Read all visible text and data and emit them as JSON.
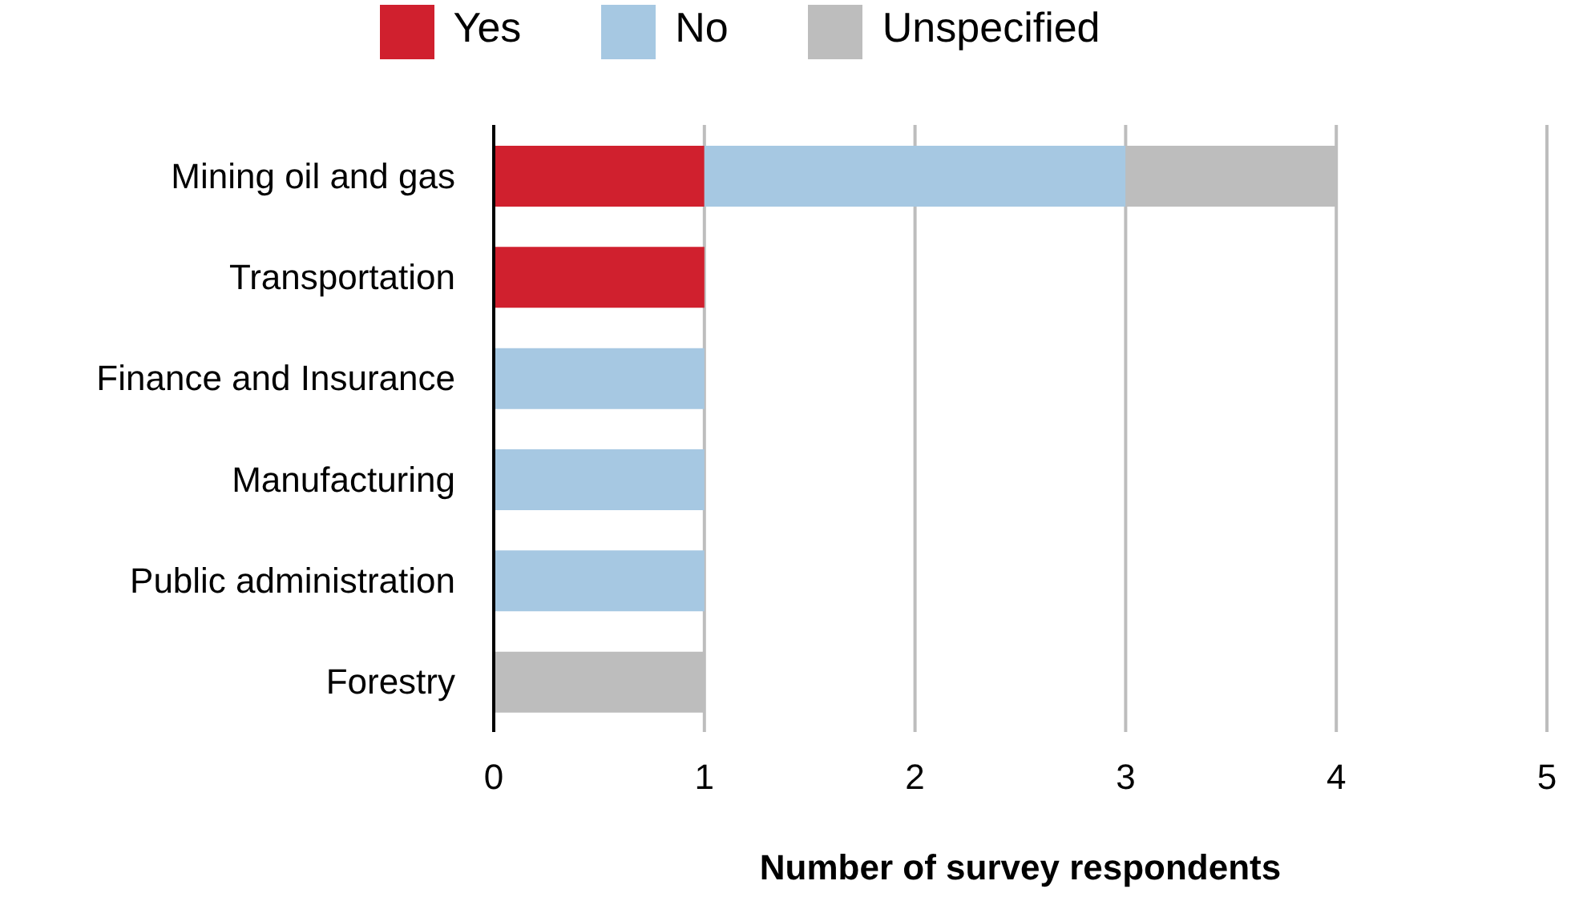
{
  "chart_data": {
    "type": "bar",
    "orientation": "horizontal",
    "stacked": true,
    "categories": [
      "Mining oil and gas",
      "Transportation",
      "Finance and Insurance",
      "Manufacturing",
      "Public administration",
      "Forestry"
    ],
    "series": [
      {
        "name": "Yes",
        "color": "#d0202e",
        "values": [
          1,
          1,
          null,
          null,
          null,
          null
        ]
      },
      {
        "name": "No",
        "color": "#a6c8e2",
        "values": [
          2,
          null,
          1,
          1,
          1,
          null
        ]
      },
      {
        "name": "Unspecified",
        "color": "#bdbdbd",
        "values": [
          1,
          null,
          null,
          null,
          null,
          1
        ]
      }
    ],
    "xlabel": "Number of survey respondents",
    "xlim": [
      0,
      5
    ],
    "xticks": [
      0,
      1,
      2,
      3,
      4,
      5
    ],
    "grid": "x",
    "legend": "top"
  }
}
